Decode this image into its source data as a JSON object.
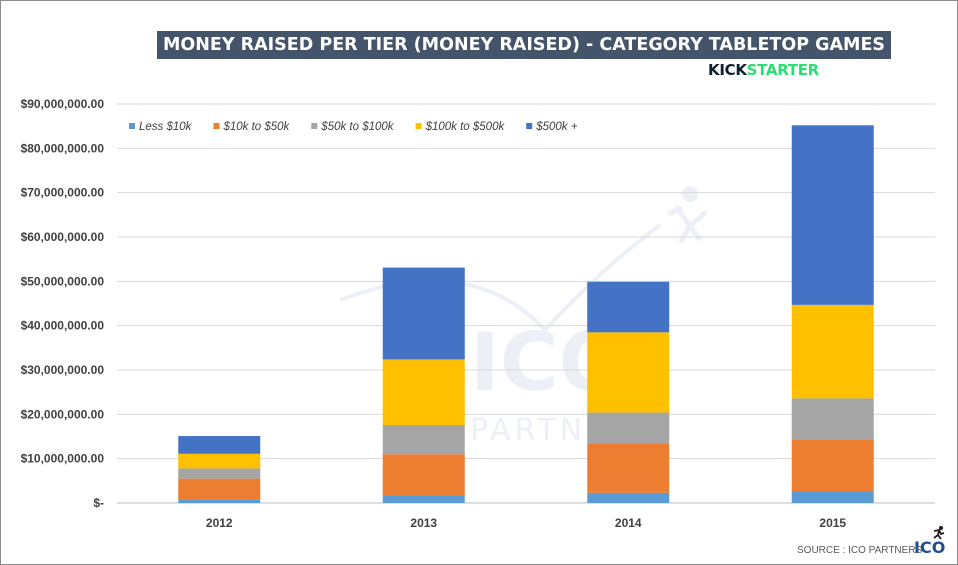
{
  "chart_data": {
    "type": "bar",
    "stacked": true,
    "title": "MONEY RAISED PER TIER (MONEY RAISED) - CATEGORY TABLETOP GAMES",
    "categories": [
      "2012",
      "2013",
      "2014",
      "2015"
    ],
    "series": [
      {
        "name": "Less $10k",
        "color": "#5b9bd5",
        "values": [
          700000,
          1700000,
          2300000,
          2600000
        ]
      },
      {
        "name": "$10k to $50k",
        "color": "#ed7d31",
        "values": [
          4800000,
          9300000,
          11200000,
          11700000
        ]
      },
      {
        "name": "$50k to $100k",
        "color": "#a5a5a5",
        "values": [
          2300000,
          6600000,
          6900000,
          9300000
        ]
      },
      {
        "name": "$100k to $500k",
        "color": "#ffc000",
        "values": [
          3300000,
          14800000,
          18100000,
          21100000
        ]
      },
      {
        "name": "$500k +",
        "color": "#4472c4",
        "values": [
          4000000,
          20700000,
          11400000,
          40500000
        ]
      }
    ],
    "yticks": [
      "$-",
      "$10,000,000.00",
      "$20,000,000.00",
      "$30,000,000.00",
      "$40,000,000.00",
      "$50,000,000.00",
      "$60,000,000.00",
      "$70,000,000.00",
      "$80,000,000.00",
      "$90,000,000.00"
    ],
    "ylim": [
      0,
      90000000
    ],
    "grid": true,
    "legend_position": "top-left"
  },
  "brand": {
    "part1": "KICK",
    "part2": "STARTER"
  },
  "source": "SOURCE : ICO PARTNERS",
  "logo_text": "ICO",
  "logo_icon": "running-figure-icon"
}
